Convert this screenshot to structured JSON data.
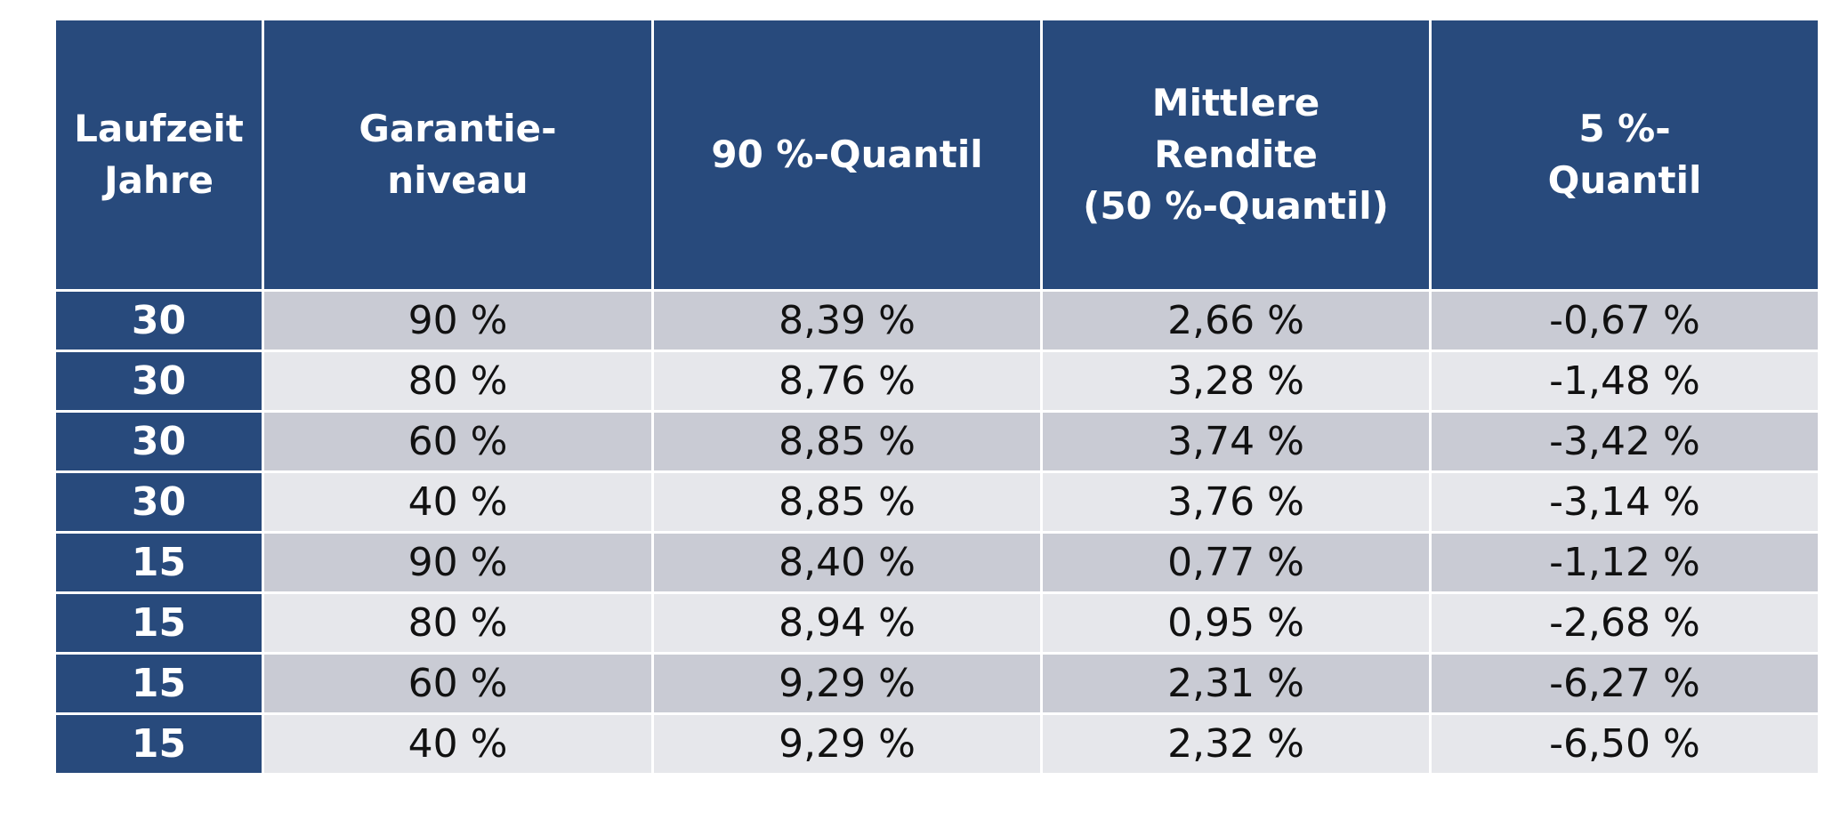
{
  "colors": {
    "header_bg": "#284a7c",
    "header_text": "#ffffff",
    "row_dark": "#c9cbd4",
    "row_light": "#e6e7eb",
    "group_divider": "#000000"
  },
  "chart_data": {
    "type": "table",
    "columns": [
      {
        "lines": [
          "Laufzeit",
          "Jahre"
        ]
      },
      {
        "lines": [
          "Garantie-",
          "niveau"
        ]
      },
      {
        "lines": [
          "90 %-Quantil"
        ]
      },
      {
        "lines": [
          "Mittlere",
          "Rendite",
          "(50 %-Quantil)"
        ]
      },
      {
        "lines": [
          "5 %-",
          "Quantil"
        ]
      }
    ],
    "rows": [
      [
        "30",
        "90 %",
        "8,39 %",
        "2,66 %",
        "-0,67 %"
      ],
      [
        "30",
        "80 %",
        "8,76 %",
        "3,28 %",
        "-1,48 %"
      ],
      [
        "30",
        "60 %",
        "8,85 %",
        "3,74 %",
        "-3,42 %"
      ],
      [
        "30",
        "40 %",
        "8,85 %",
        "3,76 %",
        "-3,14 %"
      ],
      [
        "15",
        "90 %",
        "8,40 %",
        "0,77 %",
        "-1,12 %"
      ],
      [
        "15",
        "80 %",
        "8,94 %",
        "0,95 %",
        "-2,68 %"
      ],
      [
        "15",
        "60 %",
        "9,29 %",
        "2,31 %",
        "-6,27 %"
      ],
      [
        "15",
        "40 %",
        "9,29 %",
        "2,32 %",
        "-6,50 %"
      ]
    ]
  }
}
